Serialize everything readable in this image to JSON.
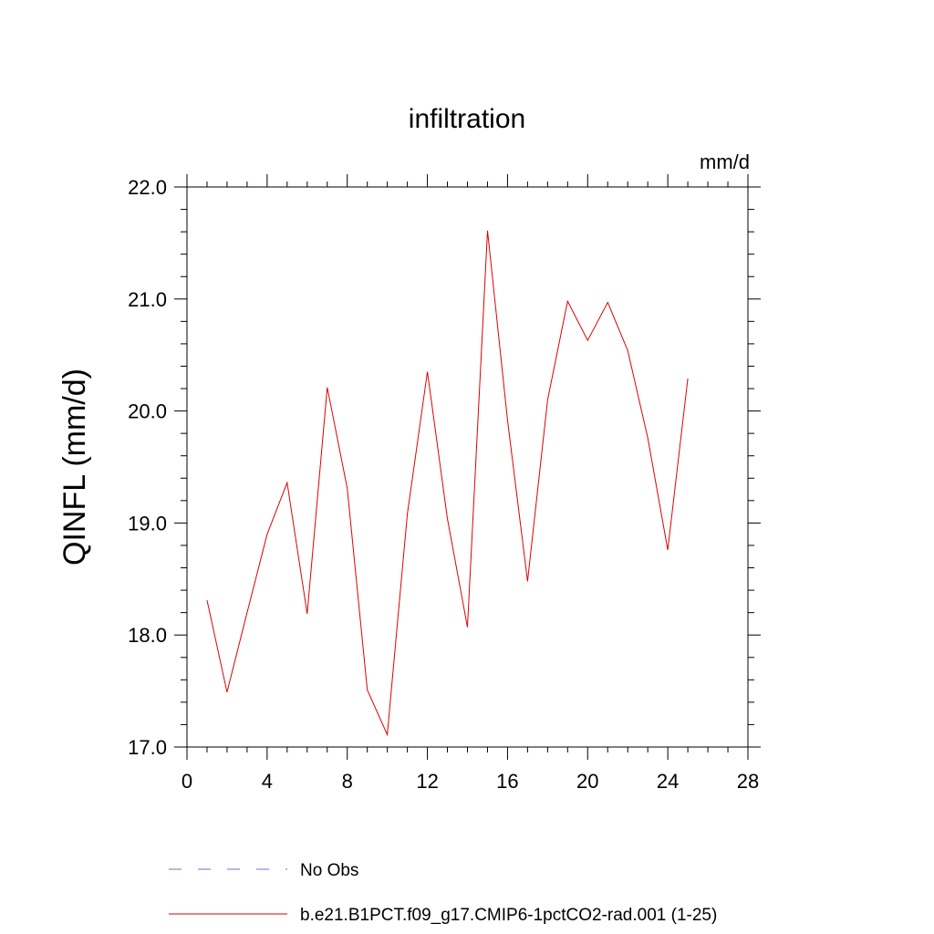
{
  "chart_data": {
    "type": "line",
    "title": "infiltration",
    "units_label": "mm/d",
    "ylabel": "QINFL  (mm/d)",
    "xlabel": "",
    "xlim": [
      0,
      28
    ],
    "ylim": [
      17.0,
      22.0
    ],
    "x_ticks": [
      "0",
      "4",
      "8",
      "12",
      "16",
      "20",
      "24",
      "28"
    ],
    "y_ticks": [
      "17.0",
      "18.0",
      "19.0",
      "20.0",
      "21.0",
      "22.0"
    ],
    "grid": false,
    "series": [
      {
        "name": "b.e21.B1PCT.f09_g17.CMIP6-1pctCO2-rad.001 (1-25)",
        "color": "#e00000",
        "style": "solid",
        "x": [
          1,
          2,
          3,
          4,
          5,
          6,
          7,
          8,
          9,
          10,
          11,
          12,
          13,
          14,
          15,
          16,
          17,
          18,
          19,
          20,
          21,
          22,
          23,
          24,
          25
        ],
        "y": [
          18.31,
          17.49,
          18.2,
          18.9,
          19.36,
          18.19,
          20.21,
          19.31,
          17.51,
          17.11,
          19.08,
          20.35,
          19.04,
          18.07,
          21.61,
          19.92,
          18.48,
          20.1,
          20.98,
          20.63,
          20.97,
          20.54,
          19.76,
          18.76,
          20.29
        ]
      }
    ],
    "legend": {
      "placement": "bottom",
      "entries": [
        {
          "label": "No Obs",
          "color": "#7070c0",
          "style": "dashed"
        },
        {
          "label": "b.e21.B1PCT.f09_g17.CMIP6-1pctCO2-rad.001 (1-25)",
          "color": "#e00000",
          "style": "solid"
        }
      ]
    }
  }
}
